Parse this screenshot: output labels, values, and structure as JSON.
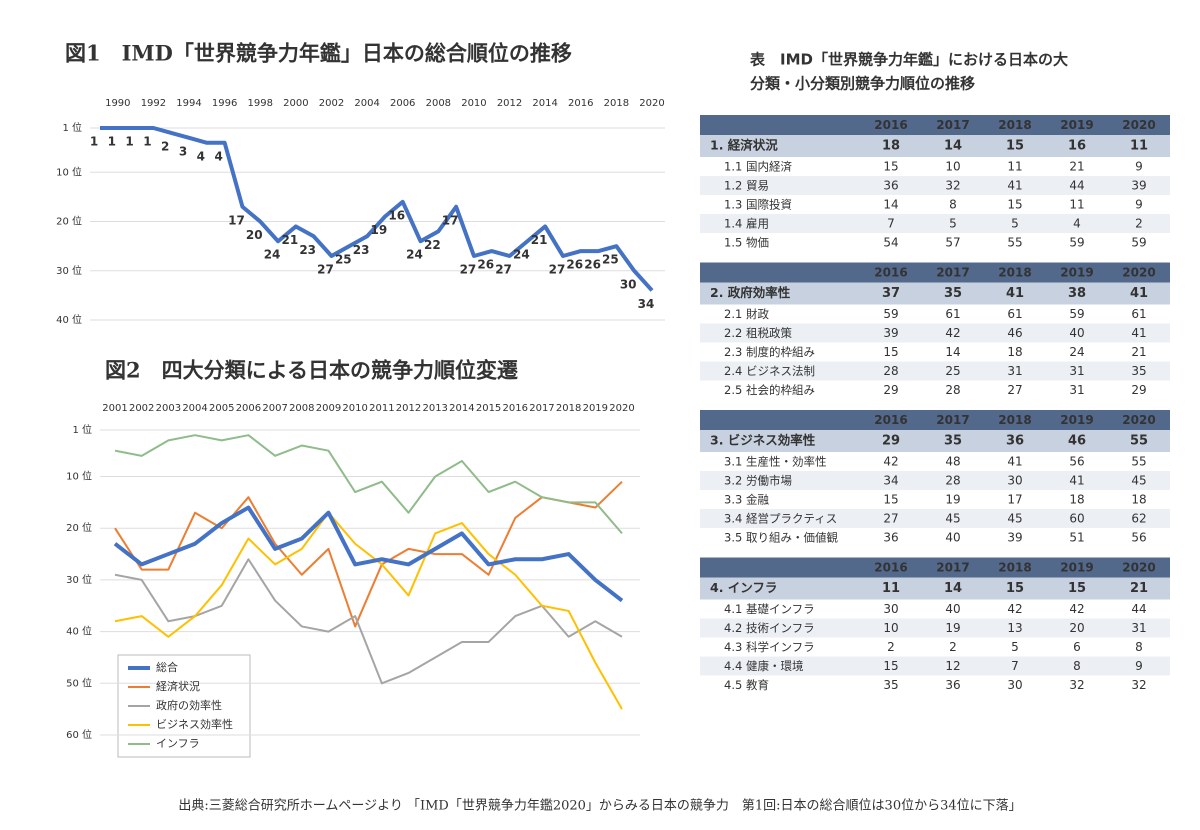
{
  "chart_data": [
    {
      "type": "line",
      "title": "図1　IMD「世界競争力年鑑」日本の総合順位の推移",
      "x": [
        1989,
        1990,
        1991,
        1992,
        1993,
        1994,
        1995,
        1996,
        1997,
        1998,
        1999,
        2000,
        2001,
        2002,
        2003,
        2004,
        2005,
        2006,
        2007,
        2008,
        2009,
        2010,
        2011,
        2012,
        2013,
        2014,
        2015,
        2016,
        2017,
        2018,
        2019,
        2020
      ],
      "series": [
        {
          "name": "総合",
          "color": "#4472c4",
          "values": [
            1,
            1,
            1,
            1,
            2,
            3,
            4,
            4,
            17,
            20,
            24,
            21,
            23,
            27,
            25,
            23,
            19,
            16,
            24,
            22,
            17,
            27,
            26,
            27,
            24,
            21,
            27,
            26,
            26,
            25,
            30,
            34
          ]
        }
      ],
      "xlim": [
        1989,
        2020
      ],
      "xticks": [
        1990,
        1992,
        1994,
        1996,
        1998,
        2000,
        2002,
        2004,
        2006,
        2008,
        2010,
        2012,
        2014,
        2016,
        2018,
        2020
      ],
      "ylim": [
        1,
        40
      ],
      "y_inverted": true,
      "yticks": [
        {
          "value": 1,
          "label": "1 位"
        },
        {
          "value": 10,
          "label": "10 位"
        },
        {
          "value": 20,
          "label": "20 位"
        },
        {
          "value": 30,
          "label": "30 位"
        },
        {
          "value": 40,
          "label": "40 位"
        }
      ],
      "grid": true,
      "data_labels": true
    },
    {
      "type": "line",
      "title": "図2　四大分類による日本の競争力順位変遷",
      "categories": [
        "2001",
        "2002",
        "2003",
        "2004",
        "2005",
        "2006",
        "2007",
        "2008",
        "2009",
        "2010",
        "2011",
        "2012",
        "2013",
        "2014",
        "2015",
        "2016",
        "2017",
        "2018",
        "2019",
        "2020"
      ],
      "series": [
        {
          "name": "総合",
          "color": "#4472c4",
          "values": [
            23,
            27,
            25,
            23,
            19,
            16,
            24,
            22,
            17,
            27,
            26,
            27,
            24,
            21,
            27,
            26,
            26,
            25,
            30,
            34
          ]
        },
        {
          "name": "経済状況",
          "color": "#ed7d31",
          "values": [
            20,
            28,
            28,
            17,
            20,
            14,
            23,
            29,
            24,
            39,
            27,
            24,
            25,
            25,
            29,
            18,
            14,
            15,
            16,
            11
          ]
        },
        {
          "name": "政府の効率性",
          "color": "#a5a5a5",
          "values": [
            29,
            30,
            38,
            37,
            35,
            26,
            34,
            39,
            40,
            37,
            50,
            48,
            45,
            42,
            42,
            37,
            35,
            41,
            38,
            41
          ]
        },
        {
          "name": "ビジネス効率性",
          "color": "#ffc000",
          "values": [
            38,
            37,
            41,
            37,
            31,
            22,
            27,
            24,
            17,
            23,
            27,
            33,
            21,
            19,
            25,
            29,
            35,
            36,
            46,
            55
          ]
        },
        {
          "name": "インフラ",
          "color": "#8fbc8a",
          "values": [
            5,
            6,
            3,
            2,
            3,
            2,
            6,
            4,
            5,
            13,
            11,
            17,
            10,
            7,
            13,
            11,
            14,
            15,
            15,
            21
          ]
        }
      ],
      "ylim": [
        1,
        60
      ],
      "y_inverted": true,
      "yticks": [
        {
          "value": 1,
          "label": "1 位"
        },
        {
          "value": 10,
          "label": "10 位"
        },
        {
          "value": 20,
          "label": "20 位"
        },
        {
          "value": 30,
          "label": "30 位"
        },
        {
          "value": 40,
          "label": "40 位"
        },
        {
          "value": 50,
          "label": "50 位"
        },
        {
          "value": 60,
          "label": "60 位"
        }
      ],
      "grid": true,
      "legend": "lower left"
    }
  ],
  "table": {
    "title": [
      "表　IMD「世界競争力年鑑」における日本の大",
      "分類・小分類別競争力順位の推移"
    ],
    "columns": [
      2016,
      2017,
      2018,
      2019,
      2020
    ],
    "sections": [
      {
        "label": "1. 経済状況",
        "values": [
          18,
          14,
          15,
          16,
          11
        ],
        "rows": [
          {
            "label": "1.1 国内経済",
            "values": [
              15,
              10,
              11,
              21,
              9
            ]
          },
          {
            "label": "1.2 貿易",
            "values": [
              36,
              32,
              41,
              44,
              39
            ]
          },
          {
            "label": "1.3 国際投資",
            "values": [
              14,
              8,
              15,
              11,
              9
            ]
          },
          {
            "label": "1.4 雇用",
            "values": [
              7,
              5,
              5,
              4,
              2
            ]
          },
          {
            "label": "1.5 物価",
            "values": [
              54,
              57,
              55,
              59,
              59
            ]
          }
        ]
      },
      {
        "label": "2. 政府効率性",
        "values": [
          37,
          35,
          41,
          38,
          41
        ],
        "rows": [
          {
            "label": "2.1 財政",
            "values": [
              59,
              61,
              61,
              59,
              61
            ]
          },
          {
            "label": "2.2 租税政策",
            "values": [
              39,
              42,
              46,
              40,
              41
            ]
          },
          {
            "label": "2.3 制度的枠組み",
            "values": [
              15,
              14,
              18,
              24,
              21
            ]
          },
          {
            "label": "2.4 ビジネス法制",
            "values": [
              28,
              25,
              31,
              31,
              35
            ]
          },
          {
            "label": "2.5 社会的枠組み",
            "values": [
              29,
              28,
              27,
              31,
              29
            ]
          }
        ]
      },
      {
        "label": "3. ビジネス効率性",
        "values": [
          29,
          35,
          36,
          46,
          55
        ],
        "rows": [
          {
            "label": "3.1 生産性・効率性",
            "values": [
              42,
              48,
              41,
              56,
              55
            ]
          },
          {
            "label": "3.2 労働市場",
            "values": [
              34,
              28,
              30,
              41,
              45
            ]
          },
          {
            "label": "3.3 金融",
            "values": [
              15,
              19,
              17,
              18,
              18
            ]
          },
          {
            "label": "3.4 経営プラクティス",
            "values": [
              27,
              45,
              45,
              60,
              62
            ]
          },
          {
            "label": "3.5 取り組み・価値観",
            "values": [
              36,
              40,
              39,
              51,
              56
            ]
          }
        ]
      },
      {
        "label": "4. インフラ",
        "values": [
          11,
          14,
          15,
          15,
          21
        ],
        "rows": [
          {
            "label": "4.1 基礎インフラ",
            "values": [
              30,
              40,
              42,
              42,
              44
            ]
          },
          {
            "label": "4.2 技術インフラ",
            "values": [
              10,
              19,
              13,
              20,
              31
            ]
          },
          {
            "label": "4.3 科学インフラ",
            "values": [
              2,
              2,
              5,
              6,
              8
            ]
          },
          {
            "label": "4.4 健康・環境",
            "values": [
              15,
              12,
              7,
              8,
              9
            ]
          },
          {
            "label": "4.5 教育",
            "values": [
              35,
              36,
              30,
              32,
              32
            ]
          }
        ]
      }
    ]
  },
  "source": "出典:三菱総合研究所ホームページより 「IMD「世界競争力年鑑2020」からみる日本の競争力　第1回:日本の総合順位は30位から34位に下落」"
}
